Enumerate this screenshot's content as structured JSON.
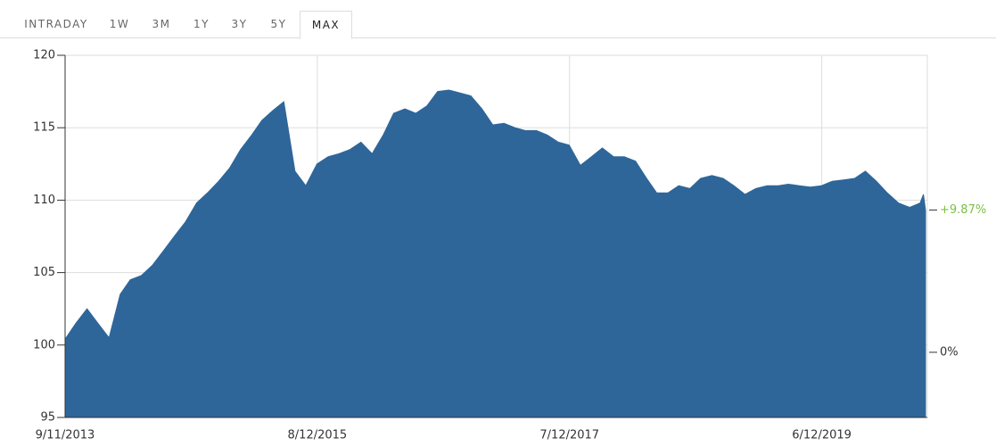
{
  "tabs": [
    "INTRADAY",
    "1W",
    "3M",
    "1Y",
    "3Y",
    "5Y",
    "MAX"
  ],
  "active_tab": 6,
  "chart_data": {
    "type": "area",
    "color": "#2e6699",
    "x": [
      "9/11/2013",
      "10/11/2013",
      "11/11/2013",
      "12/11/2013",
      "1/11/2014",
      "2/11/2014",
      "3/11/2014",
      "4/11/2014",
      "5/11/2014",
      "6/11/2014",
      "7/11/2014",
      "8/11/2014",
      "9/11/2014",
      "10/11/2014",
      "11/11/2014",
      "12/11/2014",
      "1/11/2015",
      "2/11/2015",
      "3/11/2015",
      "4/11/2015",
      "5/11/2015",
      "6/11/2015",
      "7/11/2015",
      "8/11/2015",
      "9/11/2015",
      "10/11/2015",
      "11/11/2015",
      "12/11/2015",
      "1/11/2016",
      "2/11/2016",
      "3/11/2016",
      "4/11/2016",
      "5/11/2016",
      "6/11/2016",
      "7/11/2016",
      "8/11/2016",
      "9/11/2016",
      "10/11/2016",
      "11/11/2016",
      "12/11/2016",
      "1/11/2017",
      "2/11/2017",
      "3/11/2017",
      "4/11/2017",
      "5/11/2017",
      "6/11/2017",
      "7/11/2017",
      "8/11/2017",
      "9/11/2017",
      "10/11/2017",
      "11/11/2017",
      "12/11/2017",
      "1/11/2018",
      "2/11/2018",
      "3/11/2018",
      "4/11/2018",
      "5/11/2018",
      "6/11/2018",
      "7/11/2018",
      "8/11/2018",
      "9/11/2018",
      "10/11/2018",
      "11/11/2018",
      "12/11/2018",
      "1/11/2019",
      "2/11/2019",
      "3/11/2019",
      "4/11/2019",
      "5/11/2019",
      "6/11/2019",
      "7/11/2019",
      "8/11/2019",
      "9/11/2019",
      "10/11/2019",
      "11/11/2019",
      "12/11/2019",
      "1/11/2020",
      "2/11/2020",
      "3/11/2020",
      "3/20/2020",
      "3/26/2020"
    ],
    "values": [
      100.4,
      101.5,
      102.5,
      101.5,
      100.5,
      103.5,
      104.5,
      104.8,
      105.5,
      106.5,
      107.5,
      108.5,
      109.8,
      110.5,
      111.3,
      112.2,
      113.5,
      114.5,
      115.5,
      116.2,
      116.8,
      112.0,
      111.0,
      112.5,
      113.0,
      113.2,
      113.5,
      114.0,
      113.2,
      114.5,
      116.0,
      116.3,
      116.0,
      116.5,
      117.5,
      117.6,
      117.4,
      117.2,
      116.3,
      115.2,
      115.3,
      115.0,
      114.8,
      114.8,
      114.5,
      114.0,
      113.8,
      112.4,
      113.0,
      113.6,
      113.0,
      113.0,
      112.7,
      111.5,
      110.5,
      110.5,
      111.0,
      110.8,
      111.5,
      111.7,
      111.5,
      111.0,
      110.4,
      110.8,
      111.0,
      111.0,
      111.1,
      111.0,
      110.9,
      111.0,
      111.3,
      111.4,
      111.5,
      112.0,
      111.3,
      110.5,
      109.8,
      109.5,
      109.8,
      110.4,
      109.3
    ],
    "xlim": [
      "9/11/2013",
      "3/31/2020"
    ],
    "xticks": [
      "9/11/2013",
      "8/12/2015",
      "7/12/2017",
      "6/12/2019"
    ],
    "ylim": [
      95,
      120
    ],
    "yticks": [
      95,
      100,
      105,
      110,
      115,
      120
    ],
    "y2lim": [
      -4.52,
      20.6
    ],
    "y2ticks": [
      {
        "value": 0,
        "label": "0%"
      },
      {
        "value": 9.87,
        "label": "+9.87%"
      }
    ],
    "grid": true
  }
}
